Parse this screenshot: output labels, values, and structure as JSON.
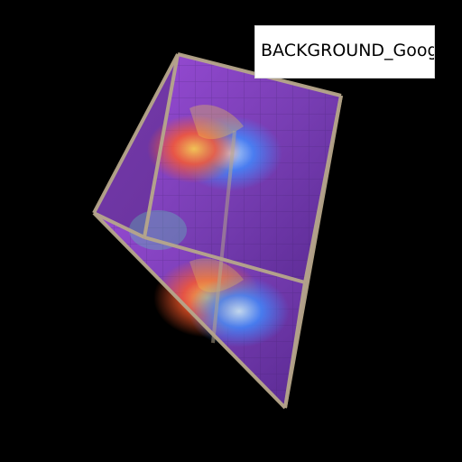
{
  "viewport": {
    "background_color": "#000000"
  },
  "overlay_label": {
    "text": "BACKGROUND_Google"
  },
  "scene": {
    "object": "cube",
    "frame_color": "#b7a78b",
    "face_color": "#7a3fb6",
    "accent_colors": [
      "#ff5a2a",
      "#3f8cff",
      "#f4d24a"
    ]
  }
}
